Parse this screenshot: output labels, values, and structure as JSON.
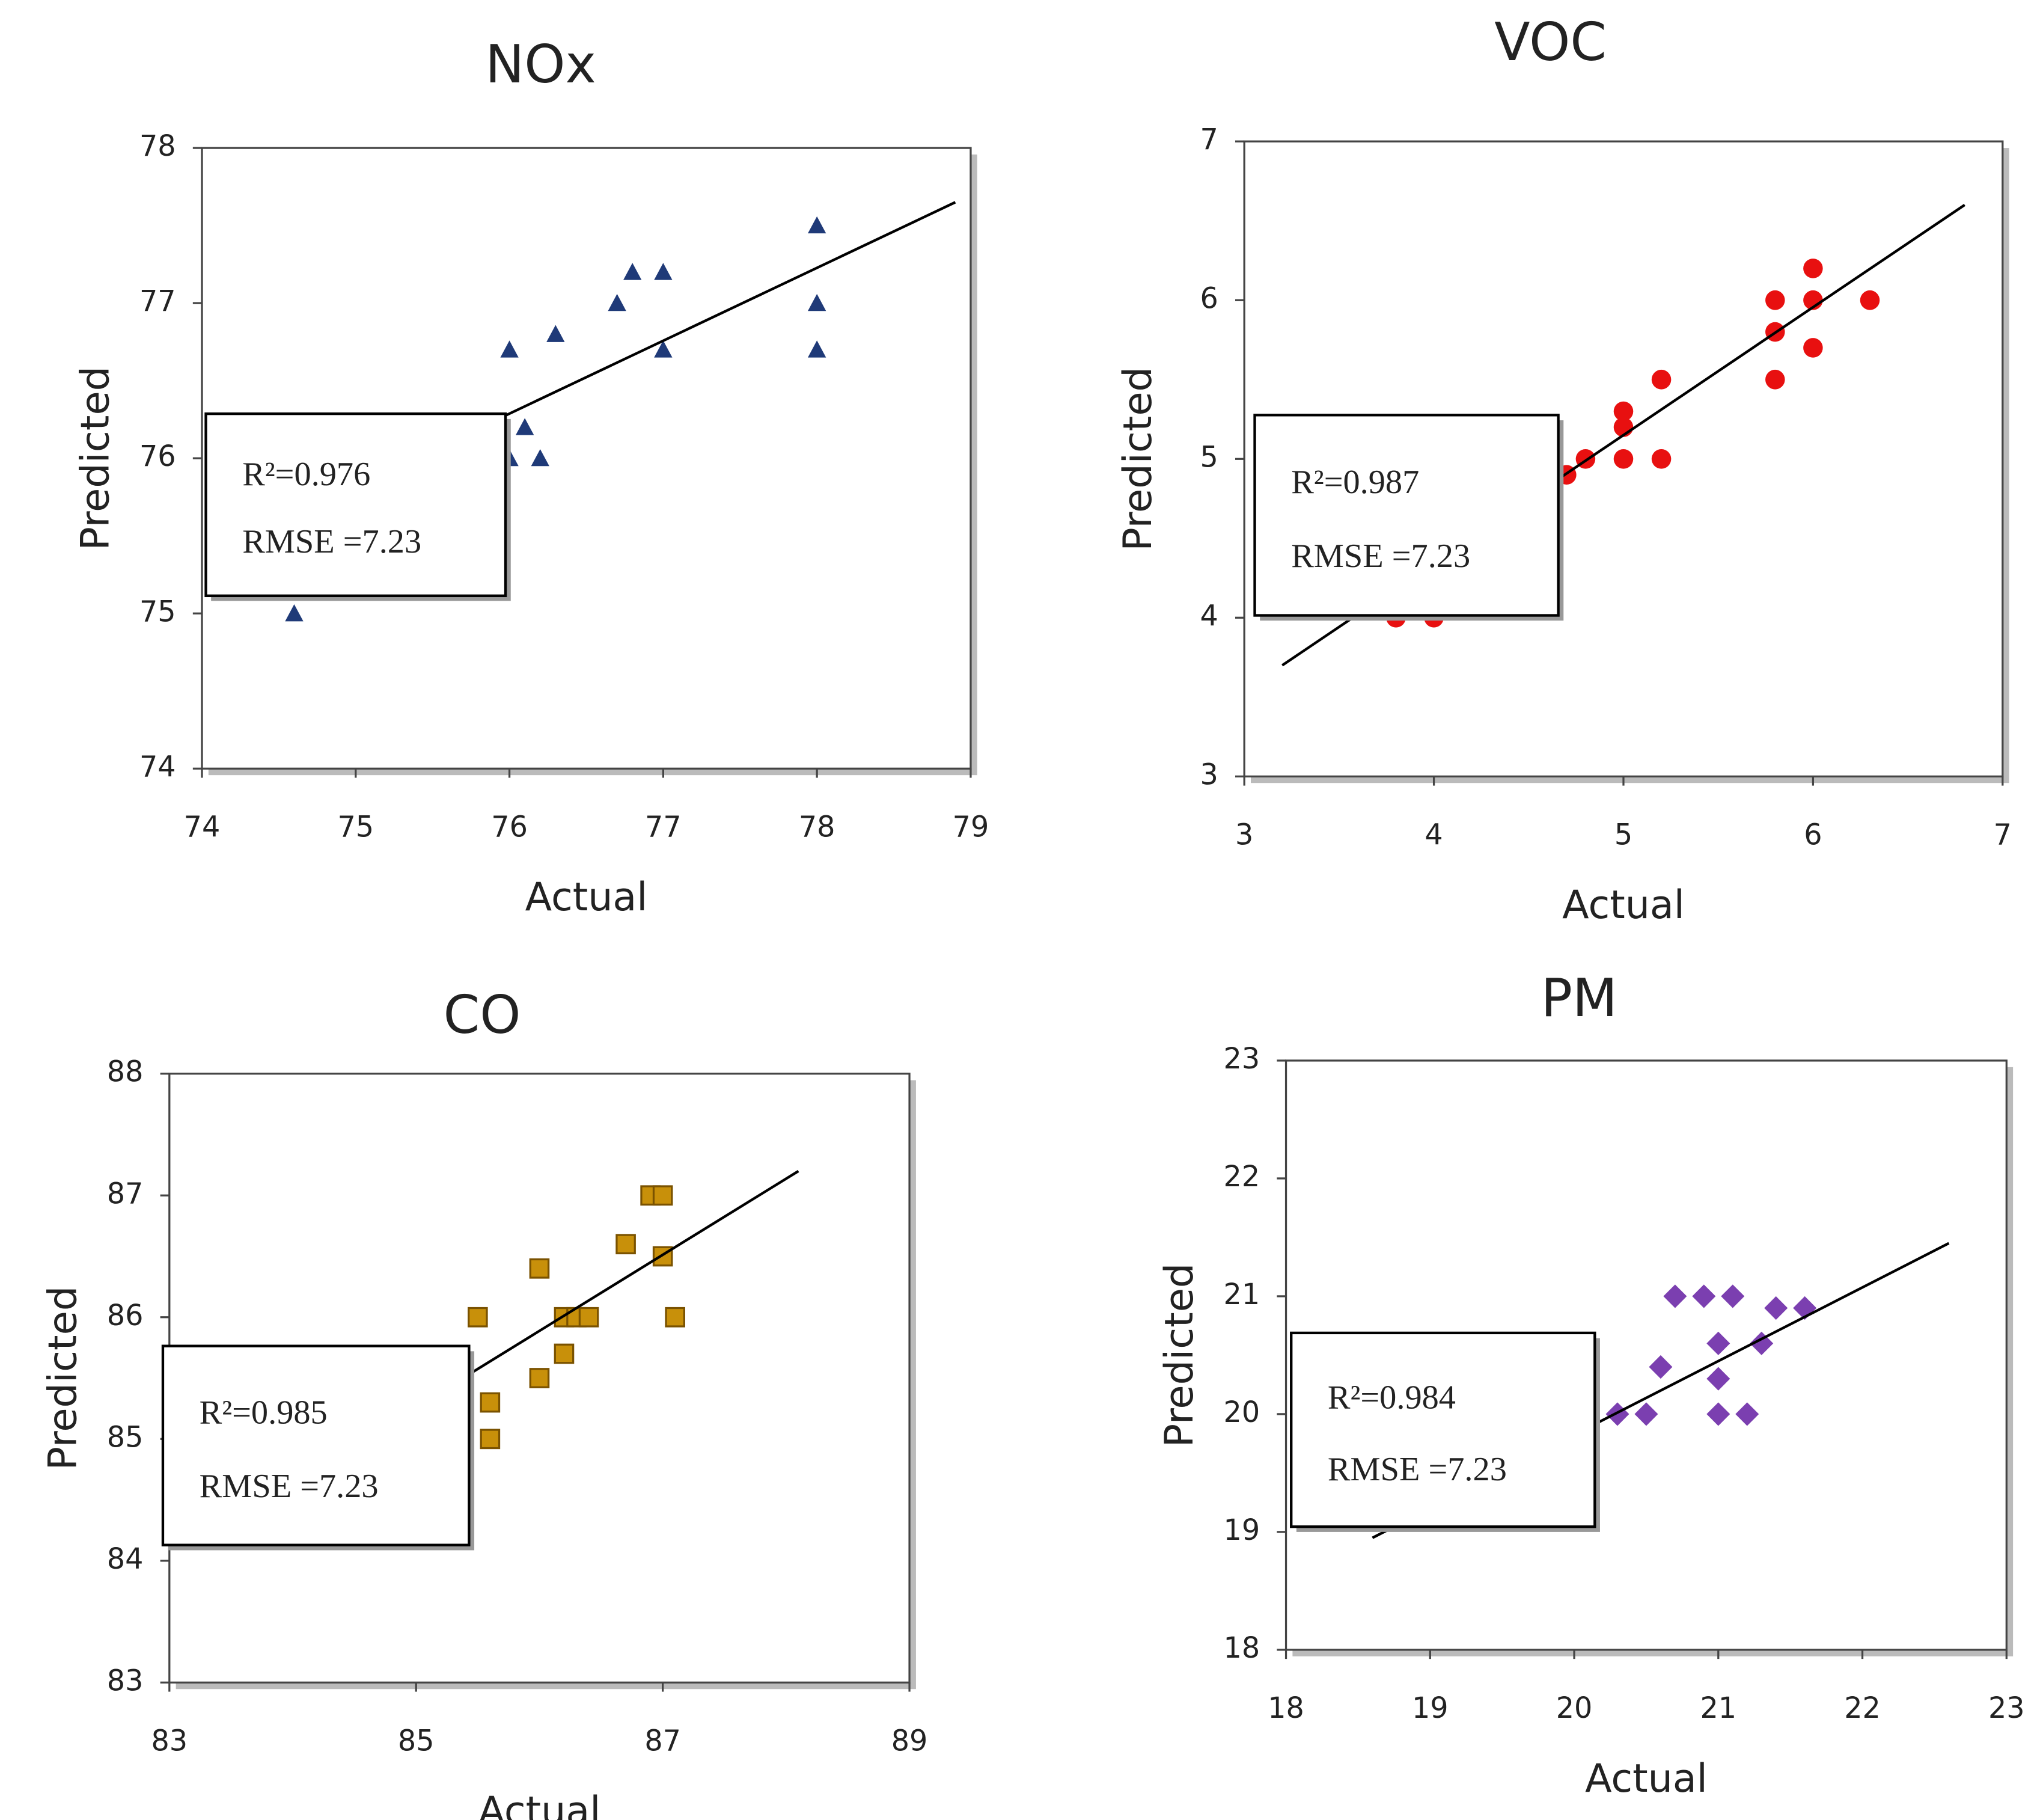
{
  "chart_data": [
    {
      "type": "scatter",
      "title": "NOx",
      "x_label": "Actual",
      "y_label": "Predicted",
      "xlim": [
        74,
        79
      ],
      "xticks": [
        74,
        75,
        76,
        77,
        78,
        79
      ],
      "ylim": [
        74,
        78
      ],
      "yticks": [
        74,
        75,
        76,
        77,
        78
      ],
      "series": [
        {
          "marker": "triangle",
          "color": "#1f3a78",
          "x": [
            74.6,
            76,
            76.3,
            76.7,
            76.8,
            77,
            77,
            78,
            78,
            78,
            76,
            76.1,
            76.2
          ],
          "values": [
            75,
            76.7,
            76.8,
            77,
            77.2,
            77.2,
            76.7,
            77.5,
            77,
            76.7,
            76,
            76.2,
            76
          ]
        }
      ],
      "trendline": {
        "x": [
          74.6,
          78.9
        ],
        "values": [
          75.63,
          77.65
        ]
      },
      "annotations": [
        "R²=0.976",
        "RMSE =7.23"
      ]
    },
    {
      "type": "scatter",
      "title": "VOC",
      "x_label": "Actual",
      "y_label": "Predicted",
      "xlim": [
        3,
        7
      ],
      "xticks": [
        3,
        4,
        5,
        6,
        7
      ],
      "ylim": [
        3,
        7
      ],
      "yticks": [
        3,
        4,
        5,
        6,
        7
      ],
      "series": [
        {
          "marker": "circle",
          "color": "#e81010",
          "x": [
            3.8,
            4,
            4.7,
            4.8,
            5,
            5,
            5,
            5.2,
            5.2,
            5.8,
            5.8,
            5.8,
            6,
            6,
            6,
            6.3
          ],
          "values": [
            4,
            4,
            4.9,
            5,
            5.3,
            5.2,
            5,
            5.5,
            5,
            6,
            5.8,
            5.5,
            6.2,
            6,
            5.7,
            6
          ]
        }
      ],
      "trendline": {
        "x": [
          3.2,
          6.8
        ],
        "values": [
          3.7,
          6.6
        ]
      },
      "annotations": [
        "R²=0.987",
        "RMSE =7.23"
      ]
    },
    {
      "type": "scatter",
      "title": "CO",
      "x_label": "Actual",
      "y_label": "Predicted",
      "xlim": [
        83,
        89
      ],
      "xticks": [
        83,
        85,
        87,
        89
      ],
      "ylim": [
        83,
        88
      ],
      "yticks": [
        83,
        84,
        85,
        86,
        87,
        88
      ],
      "series": [
        {
          "marker": "square",
          "color": "#c8900a",
          "x": [
            85.5,
            85.6,
            85.6,
            86,
            86,
            86.2,
            86.3,
            86.4,
            86.2,
            86.7,
            86.9,
            87,
            87,
            87.1
          ],
          "values": [
            86,
            85.3,
            85,
            86.4,
            85.5,
            86,
            86,
            86,
            85.7,
            86.6,
            87,
            87,
            86.5,
            86
          ]
        }
      ],
      "trendline": {
        "x": [
          84.5,
          88.1
        ],
        "values": [
          84.95,
          87.2
        ]
      },
      "annotations": [
        "R²=0.985",
        "RMSE =7.23"
      ]
    },
    {
      "type": "scatter",
      "title": "PM",
      "x_label": "Actual",
      "y_label": "Predicted",
      "xlim": [
        18,
        23
      ],
      "xticks": [
        18,
        19,
        20,
        21,
        22,
        23
      ],
      "ylim": [
        18,
        23
      ],
      "yticks": [
        18,
        19,
        20,
        21,
        22,
        23
      ],
      "series": [
        {
          "marker": "diamond",
          "color": "#7b3fb0",
          "x": [
            20.3,
            20.5,
            20.6,
            20.7,
            20.9,
            21,
            21,
            21,
            21.1,
            21.2,
            21.3,
            21.4,
            21.6
          ],
          "values": [
            20,
            20,
            20.4,
            21,
            21,
            20.6,
            20.3,
            20,
            21,
            20,
            20.6,
            20.9,
            20.9
          ]
        }
      ],
      "trendline": {
        "x": [
          18.6,
          22.6
        ],
        "values": [
          18.95,
          21.45
        ]
      },
      "annotations": [
        "R²=0.984",
        "RMSE =7.23"
      ]
    }
  ]
}
